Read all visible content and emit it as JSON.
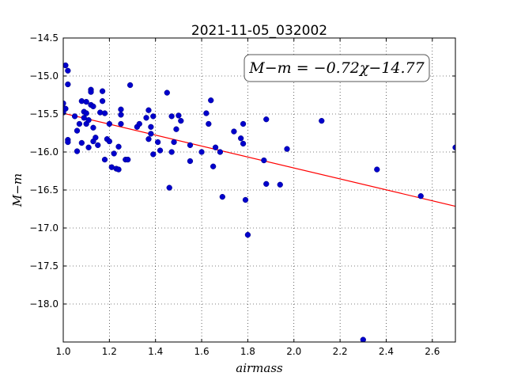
{
  "chart_data": {
    "type": "scatter",
    "title": "2021-11-05_032002",
    "xlabel": "airmass",
    "ylabel": "M−m",
    "xlim": [
      1.0,
      2.7
    ],
    "ylim": [
      -18.5,
      -14.5
    ],
    "y_inverted": true,
    "x_ticks": [
      1.0,
      1.2,
      1.4,
      1.6,
      1.8,
      2.0,
      2.2,
      2.4,
      2.6
    ],
    "x_tick_labels": [
      "1.0",
      "1.2",
      "1.4",
      "1.6",
      "1.8",
      "2.0",
      "2.2",
      "2.4",
      "2.6"
    ],
    "y_ticks": [
      -14.5,
      -15.0,
      -15.5,
      -16.0,
      -16.5,
      -17.0,
      -17.5,
      -18.0
    ],
    "y_tick_labels": [
      "−14.5",
      "−15.0",
      "−15.5",
      "−16.0",
      "−16.5",
      "−17.0",
      "−17.5",
      "−18.0"
    ],
    "grid": true,
    "annotation": "M−m = −0.72χ−14.77",
    "fit": {
      "slope": -0.72,
      "intercept": -14.77,
      "color": "#ff0000"
    },
    "marker_color": "#0000cc",
    "points": [
      [
        1.0,
        -15.36
      ],
      [
        1.0,
        -15.42
      ],
      [
        1.0,
        -15.45
      ],
      [
        1.0,
        -15.48
      ],
      [
        1.01,
        -15.43
      ],
      [
        1.01,
        -14.86
      ],
      [
        1.02,
        -14.93
      ],
      [
        1.02,
        -15.11
      ],
      [
        1.02,
        -15.84
      ],
      [
        1.02,
        -15.87
      ],
      [
        1.05,
        -15.53
      ],
      [
        1.06,
        -15.72
      ],
      [
        1.06,
        -15.99
      ],
      [
        1.07,
        -15.63
      ],
      [
        1.08,
        -15.33
      ],
      [
        1.08,
        -15.88
      ],
      [
        1.09,
        -15.47
      ],
      [
        1.09,
        -15.55
      ],
      [
        1.1,
        -15.49
      ],
      [
        1.1,
        -15.63
      ],
      [
        1.1,
        -15.34
      ],
      [
        1.11,
        -15.94
      ],
      [
        1.11,
        -15.58
      ],
      [
        1.12,
        -15.18
      ],
      [
        1.12,
        -15.21
      ],
      [
        1.12,
        -15.38
      ],
      [
        1.13,
        -15.4
      ],
      [
        1.13,
        -15.68
      ],
      [
        1.13,
        -15.86
      ],
      [
        1.14,
        -15.81
      ],
      [
        1.15,
        -15.91
      ],
      [
        1.16,
        -15.48
      ],
      [
        1.17,
        -15.33
      ],
      [
        1.17,
        -15.2
      ],
      [
        1.18,
        -15.49
      ],
      [
        1.18,
        -16.1
      ],
      [
        1.19,
        -15.83
      ],
      [
        1.2,
        -15.86
      ],
      [
        1.2,
        -15.63
      ],
      [
        1.21,
        -16.2
      ],
      [
        1.22,
        -16.02
      ],
      [
        1.23,
        -16.22
      ],
      [
        1.24,
        -16.23
      ],
      [
        1.24,
        -15.93
      ],
      [
        1.25,
        -15.63
      ],
      [
        1.25,
        -15.44
      ],
      [
        1.25,
        -15.51
      ],
      [
        1.27,
        -16.1
      ],
      [
        1.28,
        -16.1
      ],
      [
        1.29,
        -15.12
      ],
      [
        1.32,
        -15.67
      ],
      [
        1.33,
        -15.63
      ],
      [
        1.36,
        -15.55
      ],
      [
        1.37,
        -15.83
      ],
      [
        1.37,
        -15.45
      ],
      [
        1.38,
        -15.76
      ],
      [
        1.38,
        -15.67
      ],
      [
        1.39,
        -16.03
      ],
      [
        1.39,
        -15.53
      ],
      [
        1.41,
        -15.87
      ],
      [
        1.42,
        -15.98
      ],
      [
        1.45,
        -15.22
      ],
      [
        1.46,
        -16.47
      ],
      [
        1.47,
        -15.53
      ],
      [
        1.47,
        -16.0
      ],
      [
        1.48,
        -15.87
      ],
      [
        1.49,
        -15.7
      ],
      [
        1.5,
        -15.52
      ],
      [
        1.51,
        -15.59
      ],
      [
        1.55,
        -16.12
      ],
      [
        1.55,
        -15.91
      ],
      [
        1.6,
        -16.0
      ],
      [
        1.62,
        -15.49
      ],
      [
        1.63,
        -15.63
      ],
      [
        1.64,
        -15.32
      ],
      [
        1.65,
        -16.19
      ],
      [
        1.66,
        -15.94
      ],
      [
        1.68,
        -16.0
      ],
      [
        1.69,
        -16.59
      ],
      [
        1.74,
        -15.73
      ],
      [
        1.77,
        -15.82
      ],
      [
        1.78,
        -15.63
      ],
      [
        1.78,
        -15.89
      ],
      [
        1.79,
        -16.63
      ],
      [
        1.8,
        -17.09
      ],
      [
        1.87,
        -16.11
      ],
      [
        1.88,
        -16.42
      ],
      [
        1.88,
        -15.57
      ],
      [
        1.94,
        -16.43
      ],
      [
        1.97,
        -15.96
      ],
      [
        2.12,
        -15.59
      ],
      [
        2.3,
        -18.47
      ],
      [
        2.36,
        -16.23
      ],
      [
        2.55,
        -16.58
      ],
      [
        2.7,
        -15.94
      ]
    ]
  }
}
